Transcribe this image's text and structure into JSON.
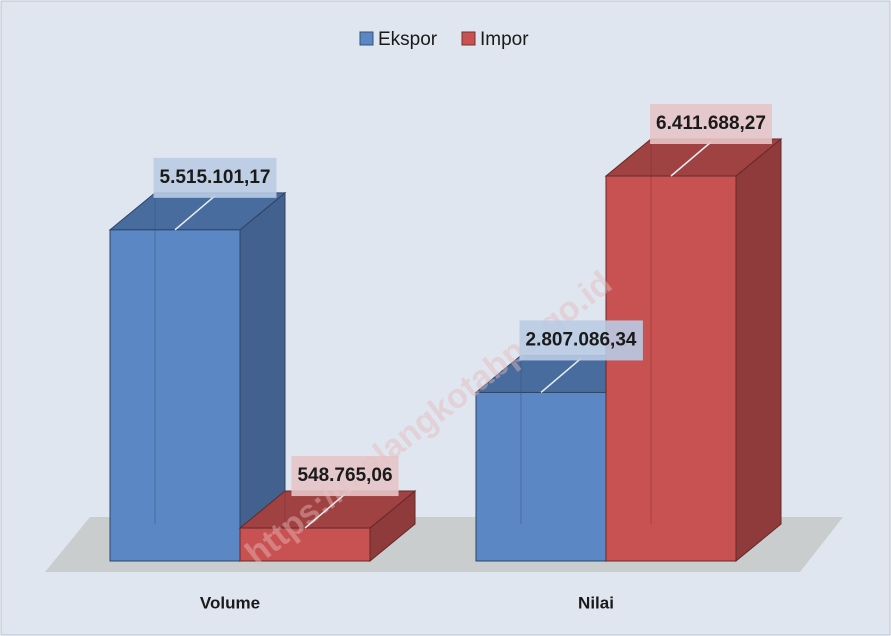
{
  "chart_data": {
    "type": "bar3d",
    "categories": [
      "Volume",
      "Nilai"
    ],
    "series": [
      {
        "name": "Ekspor",
        "color": "#5b87c5",
        "values": [
          5515101.17,
          2807086.34
        ],
        "value_labels": [
          "5.515.101,17",
          "2.807.086,34"
        ]
      },
      {
        "name": "Impor",
        "color": "#c85252",
        "values": [
          548765.06,
          6411688.27
        ],
        "value_labels": [
          "548.765,06",
          "6.411.688,27"
        ]
      }
    ],
    "legend": "top",
    "watermark": "https://malangkotabps.go.id"
  }
}
